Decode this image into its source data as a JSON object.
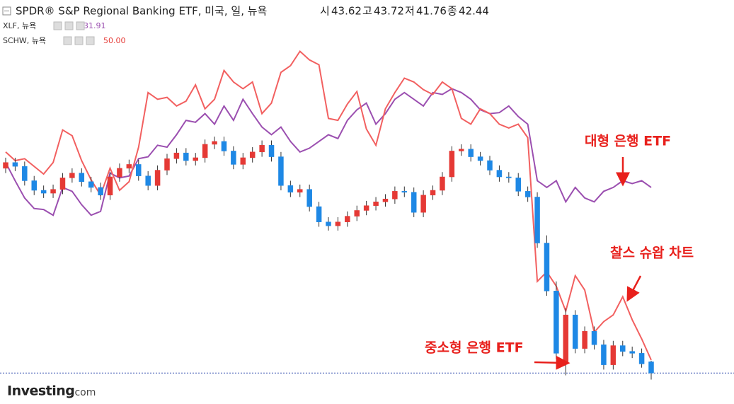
{
  "chart_data": {
    "type": "candlestick",
    "title": "SPDR® S&P Regional Banking ETF, 미국, 일, 뉴욕",
    "ohlc_labels": [
      "시",
      "고",
      "저",
      "종"
    ],
    "categories": [
      null,
      null,
      null,
      null,
      null,
      null,
      null,
      null,
      null,
      null,
      null,
      null,
      null,
      null,
      null,
      null,
      null,
      null,
      null,
      null,
      null,
      null,
      null,
      null,
      null,
      null,
      null,
      null,
      null,
      null,
      null,
      null,
      null,
      null,
      null,
      null,
      null,
      null,
      null,
      null,
      null,
      null,
      null,
      null,
      null,
      null,
      null,
      null,
      null,
      null,
      null,
      null,
      null,
      null,
      null,
      null,
      null,
      null,
      null,
      null,
      null,
      null,
      null,
      null,
      null,
      null,
      null,
      null,
      null
    ],
    "open": [
      63.8,
      64.4,
      64.0,
      62.5,
      61.5,
      61.2,
      61.6,
      62.8,
      63.3,
      62.4,
      61.8,
      61.0,
      62.9,
      63.8,
      64.2,
      63.0,
      62.0,
      63.6,
      64.8,
      65.4,
      64.6,
      64.9,
      66.3,
      66.6,
      65.6,
      64.2,
      64.9,
      65.5,
      66.2,
      65.0,
      62.0,
      61.3,
      61.6,
      59.8,
      58.2,
      57.8,
      58.2,
      58.8,
      59.4,
      59.9,
      60.3,
      60.6,
      61.4,
      61.3,
      59.2,
      61.0,
      61.5,
      62.9,
      65.6,
      65.8,
      65.0,
      64.6,
      63.6,
      62.9,
      62.8,
      61.4,
      60.8,
      56.0,
      51.0,
      43.6,
      48.5,
      45.0,
      46.8,
      45.4,
      43.3,
      45.3,
      44.7,
      44.5,
      43.62
    ],
    "high": [
      64.9,
      64.9,
      64.5,
      63.0,
      62.0,
      62.1,
      63.3,
      63.8,
      63.8,
      62.9,
      62.3,
      63.4,
      64.3,
      64.7,
      64.7,
      63.5,
      64.1,
      65.3,
      65.9,
      65.9,
      65.4,
      66.8,
      67.1,
      67.1,
      66.1,
      65.4,
      66.0,
      66.7,
      66.7,
      65.5,
      62.5,
      62.1,
      62.1,
      60.3,
      58.7,
      58.7,
      59.3,
      59.9,
      60.4,
      60.8,
      61.1,
      61.9,
      61.9,
      61.8,
      61.5,
      62.0,
      63.4,
      66.1,
      66.3,
      66.3,
      65.5,
      65.1,
      64.1,
      63.4,
      63.3,
      61.9,
      61.3,
      56.8,
      52.0,
      49.2,
      49.0,
      47.3,
      47.3,
      45.9,
      45.8,
      45.8,
      45.2,
      45.0,
      43.72
    ],
    "low": [
      63.3,
      63.5,
      62.0,
      61.0,
      60.7,
      60.7,
      61.1,
      62.3,
      61.9,
      61.3,
      60.5,
      60.5,
      62.4,
      63.3,
      62.5,
      61.5,
      61.5,
      63.1,
      64.3,
      64.1,
      64.1,
      64.4,
      65.8,
      65.1,
      63.7,
      63.7,
      64.4,
      65.0,
      64.5,
      61.5,
      60.8,
      60.8,
      59.3,
      57.7,
      57.3,
      57.3,
      57.7,
      58.3,
      58.9,
      59.4,
      59.8,
      60.1,
      60.8,
      58.7,
      58.7,
      60.5,
      61.0,
      62.4,
      65.1,
      64.5,
      64.1,
      63.1,
      62.4,
      62.3,
      60.9,
      60.3,
      55.5,
      50.5,
      43.9,
      42.2,
      44.5,
      44.5,
      44.9,
      42.8,
      42.8,
      44.2,
      44.0,
      43.0,
      41.76
    ],
    "close": [
      64.4,
      64.0,
      62.5,
      61.5,
      61.2,
      61.6,
      62.8,
      63.3,
      62.4,
      61.8,
      61.0,
      62.9,
      63.8,
      64.2,
      63.0,
      62.0,
      63.6,
      64.8,
      65.4,
      64.6,
      64.9,
      66.3,
      66.6,
      65.6,
      64.2,
      64.9,
      65.5,
      66.2,
      65.0,
      62.0,
      61.3,
      61.6,
      59.8,
      58.2,
      57.8,
      58.2,
      58.8,
      59.4,
      59.9,
      60.3,
      60.6,
      61.4,
      61.3,
      59.2,
      61.0,
      61.5,
      62.9,
      65.6,
      65.8,
      65.0,
      64.6,
      63.6,
      62.9,
      62.8,
      61.4,
      60.8,
      56.0,
      51.0,
      44.5,
      48.5,
      45.0,
      46.8,
      45.4,
      43.3,
      45.3,
      44.7,
      44.5,
      43.4,
      42.44
    ],
    "up_color": "#e53935",
    "down_color": "#1e88e5",
    "series": [
      {
        "name": "XLF, 뉴욕",
        "price_label": "31.91",
        "color": "#9b4fb0",
        "values": [
          64.4,
          62.5,
          60.7,
          59.6,
          59.5,
          58.9,
          61.8,
          61.4,
          60.0,
          58.9,
          59.3,
          63.3,
          62.8,
          63.0,
          64.8,
          65.0,
          66.2,
          66.0,
          67.3,
          68.8,
          68.6,
          69.5,
          68.4,
          70.3,
          68.8,
          71.0,
          69.5,
          68.1,
          67.3,
          68.1,
          66.6,
          65.5,
          65.9,
          66.6,
          67.3,
          66.9,
          68.8,
          69.9,
          70.6,
          68.4,
          69.5,
          71.0,
          71.7,
          71.0,
          70.3,
          71.7,
          71.5,
          72.1,
          71.7,
          71.0,
          69.9,
          69.5,
          69.6,
          70.3,
          69.2,
          68.4,
          62.5,
          61.8,
          62.5,
          60.3,
          61.8,
          60.7,
          60.3,
          61.4,
          61.8,
          62.5,
          62.2,
          62.5,
          61.8
        ]
      },
      {
        "name": "SCHW, 뉴욕",
        "price_label": "50.00",
        "color": "#f26060",
        "values": [
          65.5,
          64.6,
          64.8,
          64.0,
          63.2,
          64.4,
          67.8,
          67.2,
          64.6,
          62.6,
          61.0,
          63.8,
          61.5,
          62.4,
          66.0,
          71.7,
          71.0,
          71.2,
          70.3,
          70.8,
          72.5,
          70.0,
          71.0,
          74.0,
          72.8,
          72.1,
          72.8,
          69.5,
          70.6,
          73.8,
          74.5,
          76.0,
          75.1,
          74.6,
          69.0,
          68.8,
          70.5,
          71.8,
          67.9,
          66.2,
          70.0,
          71.7,
          73.2,
          72.8,
          72.0,
          71.5,
          72.8,
          72.1,
          69.0,
          68.4,
          70.0,
          69.5,
          68.4,
          68.0,
          68.4,
          67.0,
          52.0,
          53.0,
          51.5,
          48.9,
          52.6,
          51.1,
          46.7,
          47.8,
          48.5,
          50.4,
          48.0,
          46.0,
          43.8
        ]
      }
    ],
    "ylim": [
      41.5,
      78.4
    ],
    "annotations": [
      "대형 은행 ETF",
      "찰스 슈왑 차트",
      "중소형 은행 ETF"
    ],
    "logo": [
      "Investing",
      ".com"
    ]
  }
}
